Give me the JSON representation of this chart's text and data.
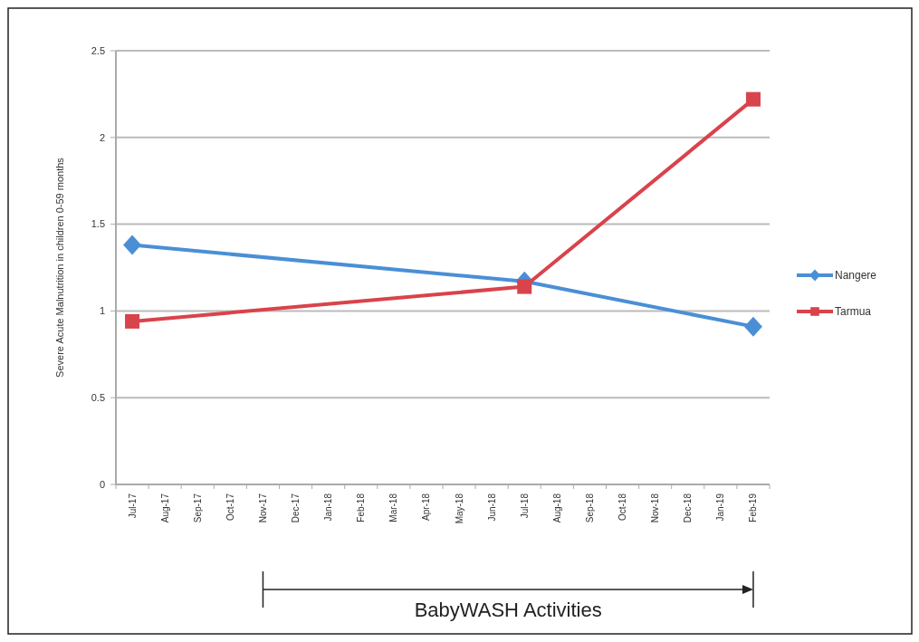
{
  "chart_data": {
    "type": "line",
    "ylabel": "Severe Acute Malnutrition in children 0-59 months",
    "categories": [
      "Jul-17",
      "Aug-17",
      "Sep-17",
      "Oct-17",
      "Nov-17",
      "Dec-17",
      "Jan-18",
      "Feb-18",
      "Mar-18",
      "Apr-18",
      "May-18",
      "Jun-18",
      "Jul-18",
      "Aug-18",
      "Sep-18",
      "Oct-18",
      "Nov-18",
      "Dec-18",
      "Jan-19",
      "Feb-19"
    ],
    "series": [
      {
        "name": "Nangere",
        "color": "#4a8fd6",
        "marker": "diamond",
        "x": [
          "Jul-17",
          "Jul-18",
          "Feb-19"
        ],
        "values": [
          1.38,
          1.17,
          0.91
        ]
      },
      {
        "name": "Tarmua",
        "color": "#d9434b",
        "marker": "square",
        "x": [
          "Jul-17",
          "Jul-18",
          "Feb-19"
        ],
        "values": [
          0.94,
          1.14,
          2.22
        ]
      }
    ],
    "ylim": [
      0,
      2.5
    ],
    "yticks": [
      0,
      0.5,
      1,
      1.5,
      2,
      2.5
    ],
    "grid": "y",
    "legend": "right",
    "annotations": [
      "BabyWASH Activities"
    ]
  }
}
